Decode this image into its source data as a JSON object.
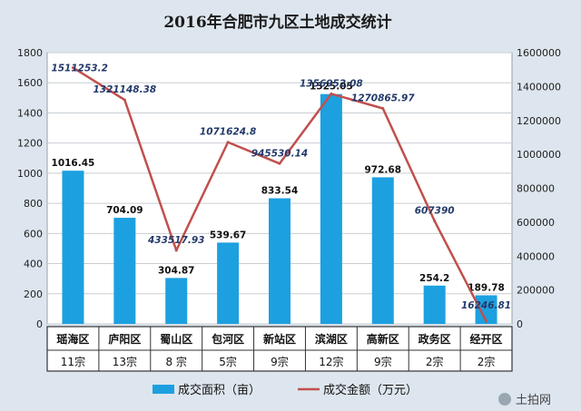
{
  "chart_data": {
    "type": "bar",
    "title": "2016年合肥市九区土地成交统计",
    "categories": [
      "瑶海区",
      "庐阳区",
      "蜀山区",
      "包河区",
      "新站区",
      "滨湖区",
      "高新区",
      "政务区",
      "经开区"
    ],
    "counts": [
      "11宗",
      "13宗",
      "8 宗",
      "5宗",
      "9宗",
      "12宗",
      "9宗",
      "2宗",
      "2宗"
    ],
    "series": [
      {
        "name": "成交面积（亩）",
        "type": "bar",
        "axis": "left",
        "color": "#1da0e0",
        "values": [
          1016.45,
          704.09,
          304.87,
          539.67,
          833.54,
          1525.05,
          972.68,
          254.2,
          189.78
        ],
        "labels": [
          "1016.45",
          "704.09",
          "304.87",
          "539.67",
          "833.54",
          "1525.05",
          "972.68",
          "254.2",
          "189.78"
        ]
      },
      {
        "name": "成交金额（万元）",
        "type": "line",
        "axis": "right",
        "color": "#c0504d",
        "values": [
          1511253.2,
          1321148.38,
          433517.93,
          1071624.8,
          945530.14,
          1356952.08,
          1270865.97,
          607390,
          16246.81
        ],
        "labels": [
          "1511253.2",
          "1321148.38",
          "433517.93",
          "1071624.8",
          "945530.14",
          "1356952.08",
          "1270865.97",
          "607390",
          "16246.81"
        ]
      }
    ],
    "ylim_left": [
      0,
      1800
    ],
    "yticks_left": [
      0,
      200,
      400,
      600,
      800,
      1000,
      1200,
      1400,
      1600,
      1800
    ],
    "ylim_right": [
      0,
      1600000
    ],
    "yticks_right": [
      0,
      200000,
      400000,
      600000,
      800000,
      1000000,
      1200000,
      1400000,
      1600000
    ],
    "grid": true,
    "legend_position": "bottom"
  },
  "watermark": {
    "brand": "土拍网"
  }
}
